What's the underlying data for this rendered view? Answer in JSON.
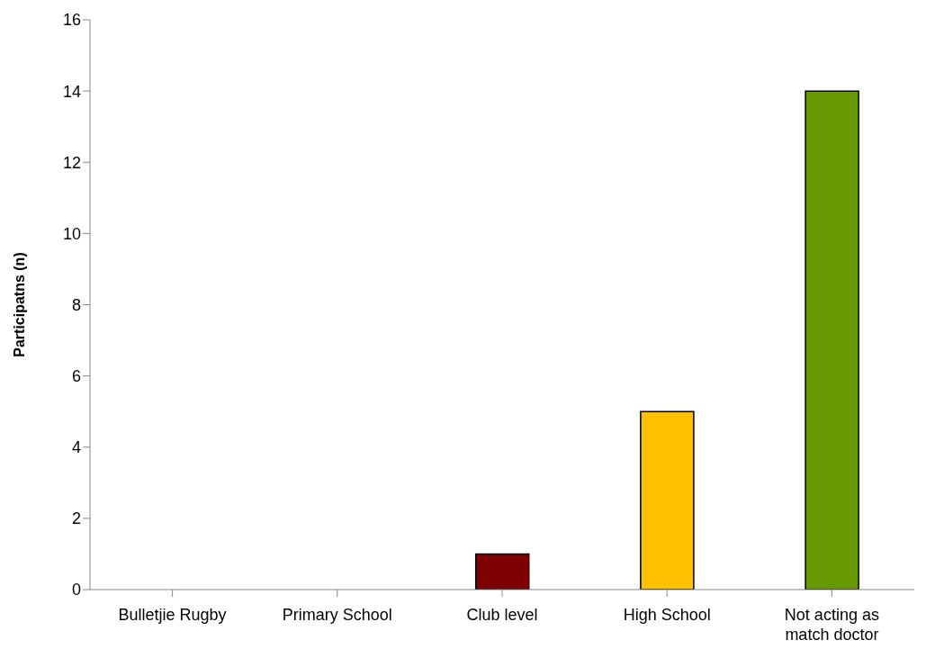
{
  "chart_data": {
    "type": "bar",
    "ylabel": "Participatns (n)",
    "categories": [
      "Bulletjie Rugby",
      "Primary School",
      "Club level",
      "High School",
      "Not acting as match doctor"
    ],
    "values": [
      0,
      0,
      1,
      5,
      14
    ],
    "colors": [
      "#4f81bd",
      "#4f81bd",
      "#7f0000",
      "#ffc000",
      "#669900"
    ],
    "ylim": [
      0,
      16
    ],
    "yticks": [
      0,
      2,
      4,
      6,
      8,
      10,
      12,
      14,
      16
    ],
    "grid": false,
    "legend": false
  }
}
